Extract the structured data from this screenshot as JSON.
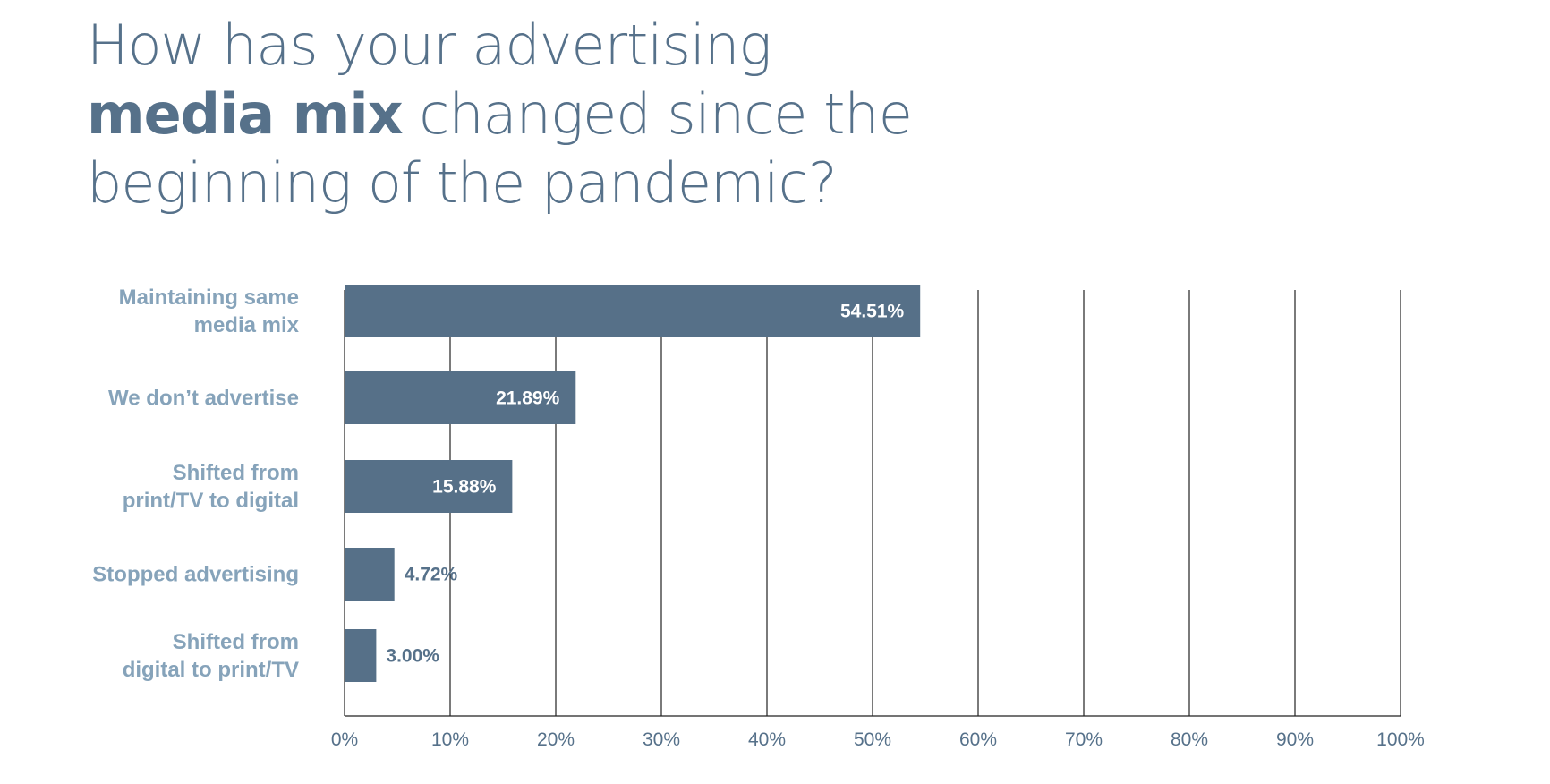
{
  "title": {
    "line1": "How has your advertising",
    "line2_bold": "media mix",
    "line2_rest": " changed since the",
    "line3": "beginning of the pandemic?"
  },
  "colors": {
    "bar": "#567088",
    "category_label": "#86a3ba",
    "tick_label": "#56718a",
    "title": "#56718a",
    "gridline": "#222222",
    "value_inside": "#ffffff",
    "value_outside": "#56718a"
  },
  "chart_data": {
    "type": "bar",
    "orientation": "horizontal",
    "title": "How has your advertising media mix changed since the beginning of the pandemic?",
    "categories": [
      [
        "Maintaining same",
        "media mix"
      ],
      [
        "We don’t advertise"
      ],
      [
        "Shifted from",
        "print/TV to digital"
      ],
      [
        "Stopped advertising"
      ],
      [
        "Shifted from",
        "digital to print/TV"
      ]
    ],
    "values": [
      54.51,
      21.89,
      15.88,
      4.72,
      3.0
    ],
    "value_labels": [
      "54.51%",
      "21.89%",
      "15.88%",
      "4.72%",
      "3.00%"
    ],
    "xlim": [
      0,
      100
    ],
    "xticks": [
      0,
      10,
      20,
      30,
      40,
      50,
      60,
      70,
      80,
      90,
      100
    ],
    "xtick_labels": [
      "0%",
      "10%",
      "20%",
      "30%",
      "40%",
      "50%",
      "60%",
      "70%",
      "80%",
      "90%",
      "100%"
    ],
    "grid": true,
    "legend": "none"
  }
}
